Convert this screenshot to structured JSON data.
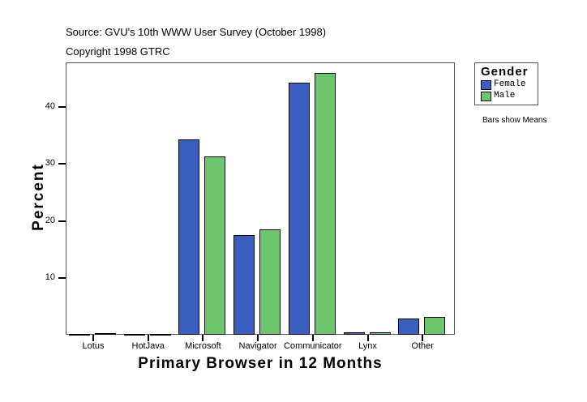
{
  "header": {
    "source": "Source: GVU's 10th WWW User Survey (October 1998)",
    "copyright": "Copyright 1998 GTRC"
  },
  "legend": {
    "title": "Gender",
    "items": [
      {
        "label": "Female",
        "color": "#3a5fc0"
      },
      {
        "label": "Male",
        "color": "#6dc56d"
      }
    ],
    "note": "Bars show Means"
  },
  "chart_data": {
    "type": "bar",
    "title": "",
    "xlabel": "Primary Browser in 12 Months",
    "ylabel": "Percent",
    "categories": [
      "Lotus",
      "HotJava",
      "Microsoft",
      "Navigator",
      "Communicator",
      "Lynx",
      "Other"
    ],
    "series": [
      {
        "name": "Female",
        "color": "#3a5fc0",
        "values": [
          0.0,
          0.1,
          34.3,
          17.5,
          44.3,
          0.4,
          2.9
        ]
      },
      {
        "name": "Male",
        "color": "#6dc56d",
        "values": [
          0.3,
          0.1,
          31.3,
          18.5,
          46.0,
          0.4,
          3.1
        ]
      }
    ],
    "yticks": [
      10,
      20,
      30,
      40
    ],
    "ylim": [
      0,
      47.8
    ],
    "grid": false,
    "legend_position": "right",
    "annotations": [
      "Bars show Means"
    ]
  }
}
